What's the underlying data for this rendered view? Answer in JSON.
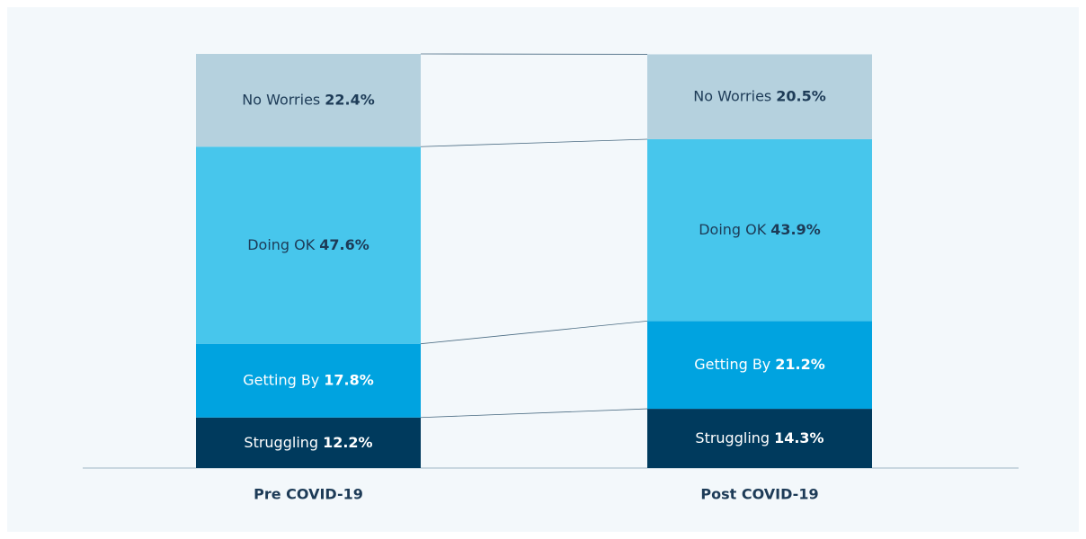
{
  "chart_data": {
    "type": "stacked-bar",
    "categories": [
      "Pre COVID-19",
      "Post COVID-19"
    ],
    "series": [
      {
        "name": "Struggling",
        "color": "#003a5d",
        "values": [
          12.2,
          14.3
        ],
        "value_labels": [
          "12.2%",
          "14.3%"
        ]
      },
      {
        "name": "Getting By",
        "color": "#00a3e0",
        "values": [
          17.8,
          21.2
        ],
        "value_labels": [
          "17.8%",
          "21.2%"
        ]
      },
      {
        "name": "Doing OK",
        "color": "#47c6ec",
        "values": [
          47.6,
          43.9
        ],
        "value_labels": [
          "47.6%",
          "43.9%"
        ]
      },
      {
        "name": "No Worries",
        "color": "#b5d1de",
        "values": [
          22.4,
          20.5
        ],
        "value_labels": [
          "22.4%",
          "20.5%"
        ]
      }
    ]
  }
}
